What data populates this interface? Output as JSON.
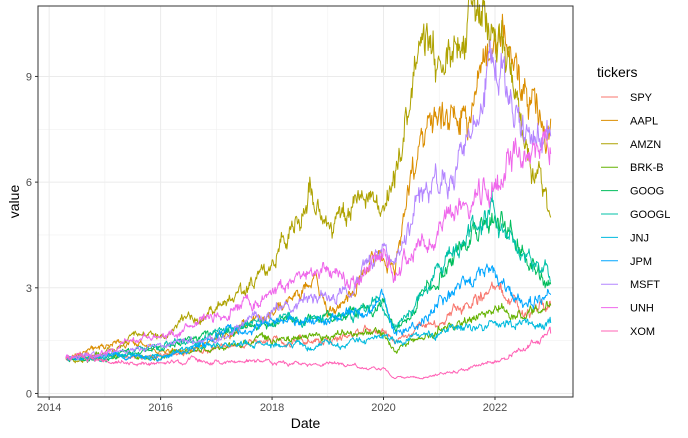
{
  "chart_data": {
    "type": "line",
    "xlabel": "Date",
    "ylabel": "value",
    "legend_title": "tickers",
    "legend_position": "right",
    "grid": true,
    "xlim": [
      2013.8,
      2023.4
    ],
    "ylim": [
      -0.1,
      11.0
    ],
    "x_ticks": [
      2014,
      2016,
      2018,
      2020,
      2022
    ],
    "x_tick_labels": [
      "2014",
      "2016",
      "2018",
      "2020",
      "2022"
    ],
    "y_ticks": [
      0,
      3,
      6,
      9
    ],
    "y_tick_labels": [
      "0",
      "3",
      "6",
      "9"
    ],
    "series": [
      {
        "name": "SPY",
        "color": "#F8766D",
        "x": [
          2014.3,
          2015.0,
          2016.0,
          2016.5,
          2017.0,
          2018.0,
          2018.9,
          2019.5,
          2020.0,
          2020.2,
          2020.6,
          2021.0,
          2021.5,
          2022.0,
          2022.5,
          2023.0
        ],
        "y": [
          1.0,
          1.08,
          1.05,
          1.15,
          1.3,
          1.5,
          1.45,
          1.7,
          1.85,
          1.4,
          1.8,
          2.1,
          2.5,
          2.9,
          2.3,
          2.5
        ]
      },
      {
        "name": "AAPL",
        "color": "#DB8E00",
        "x": [
          2014.3,
          2015.0,
          2015.5,
          2016.0,
          2016.5,
          2017.0,
          2018.0,
          2018.8,
          2019.0,
          2019.5,
          2020.0,
          2020.2,
          2020.5,
          2020.7,
          2021.0,
          2021.5,
          2022.0,
          2022.5,
          2023.0
        ],
        "y": [
          1.0,
          1.35,
          1.5,
          1.2,
          1.25,
          1.6,
          2.3,
          3.2,
          2.2,
          3.0,
          4.3,
          3.3,
          6.0,
          6.8,
          7.5,
          8.0,
          10.5,
          8.5,
          7.8
        ]
      },
      {
        "name": "AMZN",
        "color": "#AEA200",
        "x": [
          2014.3,
          2014.8,
          2015.5,
          2016.0,
          2016.5,
          2017.0,
          2017.5,
          2018.0,
          2018.7,
          2019.0,
          2019.5,
          2020.0,
          2020.3,
          2020.6,
          2021.0,
          2021.5,
          2021.8,
          2022.0,
          2022.3,
          2022.5,
          2022.8,
          2023.0
        ],
        "y": [
          1.0,
          0.95,
          1.6,
          1.7,
          2.1,
          2.4,
          2.9,
          3.6,
          5.8,
          4.6,
          5.4,
          5.2,
          6.8,
          9.3,
          9.5,
          10.2,
          10.8,
          10.5,
          9.0,
          7.5,
          6.0,
          5.0
        ]
      },
      {
        "name": "BRK-B",
        "color": "#64B200",
        "x": [
          2014.3,
          2015.0,
          2016.0,
          2017.0,
          2018.0,
          2019.0,
          2020.0,
          2020.2,
          2020.6,
          2021.0,
          2021.5,
          2022.0,
          2022.5,
          2023.0
        ],
        "y": [
          1.0,
          1.1,
          1.0,
          1.35,
          1.6,
          1.6,
          1.75,
          1.35,
          1.5,
          1.8,
          2.1,
          2.4,
          2.2,
          2.5
        ]
      },
      {
        "name": "GOOG",
        "color": "#00BD5C",
        "x": [
          2014.3,
          2015.0,
          2015.5,
          2016.0,
          2017.0,
          2018.0,
          2019.0,
          2020.0,
          2020.2,
          2020.6,
          2021.0,
          2021.5,
          2022.0,
          2022.5,
          2023.0
        ],
        "y": [
          1.0,
          0.95,
          1.2,
          1.3,
          1.7,
          2.0,
          2.1,
          2.5,
          1.8,
          2.6,
          3.4,
          4.3,
          5.2,
          4.0,
          3.1
        ]
      },
      {
        "name": "GOOGL",
        "color": "#00C1A7",
        "x": [
          2014.3,
          2015.0,
          2015.5,
          2016.0,
          2017.0,
          2018.0,
          2019.0,
          2020.0,
          2020.2,
          2020.6,
          2021.0,
          2021.5,
          2022.0,
          2022.5,
          2023.0
        ],
        "y": [
          1.0,
          0.97,
          1.22,
          1.32,
          1.72,
          2.05,
          2.15,
          2.55,
          1.85,
          2.65,
          3.45,
          4.35,
          5.3,
          4.1,
          3.2
        ]
      },
      {
        "name": "JNJ",
        "color": "#00BADE",
        "x": [
          2014.3,
          2015.0,
          2016.0,
          2017.0,
          2018.0,
          2019.0,
          2020.0,
          2020.2,
          2021.0,
          2022.0,
          2023.0
        ],
        "y": [
          1.0,
          1.05,
          1.1,
          1.35,
          1.35,
          1.4,
          1.55,
          1.45,
          1.75,
          2.0,
          2.0
        ]
      },
      {
        "name": "JPM",
        "color": "#00A6FF",
        "x": [
          2014.3,
          2015.0,
          2016.0,
          2016.8,
          2017.0,
          2018.0,
          2019.0,
          2020.0,
          2020.2,
          2020.6,
          2021.0,
          2021.5,
          2022.0,
          2022.5,
          2023.0
        ],
        "y": [
          1.0,
          1.05,
          1.0,
          1.4,
          1.7,
          2.0,
          2.0,
          2.6,
          1.6,
          1.9,
          2.6,
          3.1,
          3.5,
          2.5,
          2.8
        ]
      },
      {
        "name": "MSFT",
        "color": "#B385FF",
        "x": [
          2014.3,
          2015.0,
          2016.0,
          2017.0,
          2018.0,
          2018.9,
          2019.0,
          2019.5,
          2020.0,
          2020.2,
          2020.6,
          2021.0,
          2021.5,
          2022.0,
          2022.5,
          2023.0
        ],
        "y": [
          1.0,
          1.1,
          1.3,
          1.6,
          2.3,
          2.8,
          2.6,
          3.4,
          4.2,
          3.5,
          5.4,
          5.9,
          7.0,
          9.5,
          7.2,
          7.3
        ]
      },
      {
        "name": "UNH",
        "color": "#EF67EB",
        "x": [
          2014.3,
          2015.0,
          2015.5,
          2016.0,
          2016.5,
          2017.0,
          2017.5,
          2018.0,
          2018.5,
          2019.0,
          2019.5,
          2020.0,
          2020.2,
          2020.6,
          2021.0,
          2021.5,
          2022.0,
          2022.5,
          2023.0
        ],
        "y": [
          1.0,
          1.2,
          1.5,
          1.6,
          1.8,
          2.2,
          2.5,
          2.8,
          3.3,
          3.4,
          3.2,
          3.9,
          3.4,
          4.4,
          4.6,
          5.5,
          6.0,
          7.0,
          6.8
        ]
      },
      {
        "name": "XOM",
        "color": "#FF63B6",
        "x": [
          2014.3,
          2014.6,
          2015.0,
          2016.0,
          2016.5,
          2017.0,
          2018.0,
          2018.8,
          2019.0,
          2020.0,
          2020.2,
          2020.8,
          2021.0,
          2021.5,
          2022.0,
          2022.5,
          2023.0
        ],
        "y": [
          1.0,
          1.02,
          0.9,
          0.85,
          0.95,
          0.9,
          0.9,
          0.8,
          0.85,
          0.7,
          0.45,
          0.45,
          0.55,
          0.7,
          0.9,
          1.3,
          1.7
        ]
      }
    ]
  }
}
